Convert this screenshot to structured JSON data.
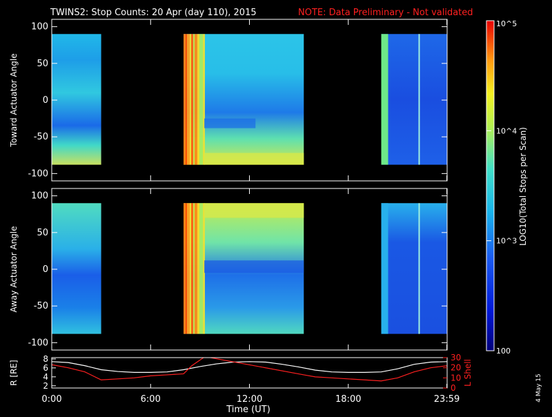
{
  "header": {
    "title": "TWINS2: Stop Counts: 20 Apr (day 110), 2015",
    "note": "NOTE: Data Preliminary - Not validated"
  },
  "colors": {
    "note": "#ff2020",
    "lshell": "#ff2020",
    "radius": "#ffffff",
    "frame": "#ffffff",
    "background": "#000000"
  },
  "colorbar": {
    "label": "LOG10(Total Stops per Scan)",
    "scale": "log",
    "range": [
      100,
      100000
    ],
    "ticks": [
      {
        "value": 100000,
        "label": "10^5"
      },
      {
        "value": 10000,
        "label": "10^4"
      },
      {
        "value": 1000,
        "label": "10^3"
      },
      {
        "value": 100,
        "label": "100"
      }
    ]
  },
  "footer": {
    "date_stamp": "4 May 15"
  },
  "chart_data": [
    {
      "type": "heatmap",
      "panel": "toward",
      "ylabel": "Toward Actuator Angle",
      "ylim": [
        -110,
        110
      ],
      "yticks": [
        "100",
        "50",
        "0",
        "-50",
        "-100"
      ],
      "xlim_hours": [
        0,
        24
      ],
      "data_segments_hours": [
        [
          0,
          3.0
        ],
        [
          8.0,
          15.3
        ],
        [
          20.0,
          24.0
        ]
      ],
      "angle_range": [
        -88,
        90
      ]
    },
    {
      "type": "heatmap",
      "panel": "away",
      "ylabel": "Away Actuator Angle",
      "ylim": [
        -110,
        110
      ],
      "yticks": [
        "100",
        "50",
        "0",
        "-50",
        "-100"
      ],
      "xlim_hours": [
        0,
        24
      ],
      "data_segments_hours": [
        [
          0,
          3.0
        ],
        [
          8.0,
          15.3
        ],
        [
          20.0,
          24.0
        ]
      ],
      "angle_range": [
        -88,
        90
      ]
    },
    {
      "type": "line",
      "panel": "orbit",
      "xlabel": "Time (UT)",
      "xtick_labels": [
        "0:00",
        "6:00",
        "12:00",
        "18:00",
        "23:59"
      ],
      "xtick_hours": [
        0,
        6,
        12,
        18,
        23.98
      ],
      "y_left": {
        "label": "R [RE]",
        "ticks": [
          "2",
          "4",
          "6",
          "8"
        ],
        "range": [
          1.5,
          8.3
        ]
      },
      "y_right": {
        "label": "L Shell",
        "ticks": [
          "0",
          "10",
          "20",
          "30"
        ],
        "range": [
          0,
          30
        ]
      },
      "series": [
        {
          "name": "R [RE]",
          "axis": "left",
          "x": [
            0,
            1,
            2,
            3,
            4,
            5,
            6,
            7,
            8,
            9,
            10,
            11,
            12,
            13,
            14,
            15,
            16,
            17,
            18,
            19,
            20,
            21,
            22,
            23,
            24
          ],
          "y": [
            7.4,
            7.2,
            6.5,
            5.6,
            5.2,
            5.0,
            5.0,
            5.1,
            5.6,
            6.3,
            6.9,
            7.3,
            7.4,
            7.3,
            6.8,
            6.2,
            5.5,
            5.1,
            5.0,
            5.0,
            5.1,
            5.8,
            6.8,
            7.3,
            7.4
          ]
        },
        {
          "name": "L Shell",
          "axis": "right",
          "x": [
            0,
            1,
            2,
            3,
            4,
            5,
            6,
            7,
            8,
            8.5,
            9.3,
            15.3,
            16,
            17,
            18,
            19,
            20,
            21,
            22,
            23,
            24
          ],
          "y": [
            23,
            20,
            16,
            8,
            9,
            10,
            12,
            13,
            14,
            22,
            31,
            13,
            11,
            10,
            9,
            8,
            7,
            10,
            16,
            20,
            22
          ]
        }
      ]
    }
  ]
}
